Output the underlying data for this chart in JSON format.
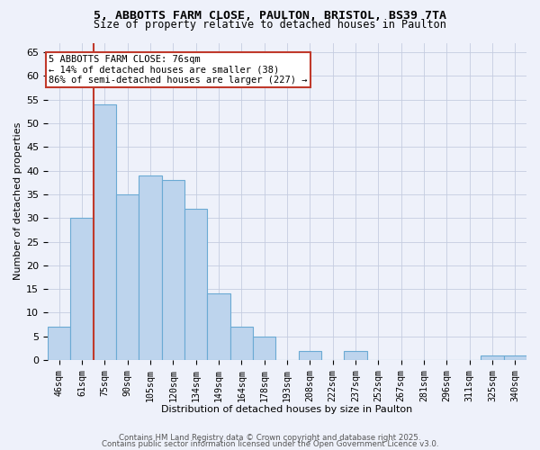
{
  "title_line1": "5, ABBOTTS FARM CLOSE, PAULTON, BRISTOL, BS39 7TA",
  "title_line2": "Size of property relative to detached houses in Paulton",
  "xlabel": "Distribution of detached houses by size in Paulton",
  "ylabel": "Number of detached properties",
  "bar_labels": [
    "46sqm",
    "61sqm",
    "75sqm",
    "90sqm",
    "105sqm",
    "120sqm",
    "134sqm",
    "149sqm",
    "164sqm",
    "178sqm",
    "193sqm",
    "208sqm",
    "222sqm",
    "237sqm",
    "252sqm",
    "267sqm",
    "281sqm",
    "296sqm",
    "311sqm",
    "325sqm",
    "340sqm"
  ],
  "bar_values": [
    7,
    30,
    54,
    35,
    39,
    38,
    32,
    14,
    7,
    5,
    0,
    2,
    0,
    2,
    0,
    0,
    0,
    0,
    0,
    1,
    1
  ],
  "bar_color": "#bdd4ed",
  "bar_edge_color": "#6baad4",
  "vline_x": 2.0,
  "vline_color": "#c0392b",
  "annotation_text": "5 ABBOTTS FARM CLOSE: 76sqm\n← 14% of detached houses are smaller (38)\n86% of semi-detached houses are larger (227) →",
  "annotation_box_color": "white",
  "annotation_box_edge": "#c0392b",
  "ylim": [
    0,
    67
  ],
  "yticks": [
    0,
    5,
    10,
    15,
    20,
    25,
    30,
    35,
    40,
    45,
    50,
    55,
    60,
    65
  ],
  "footer_line1": "Contains HM Land Registry data © Crown copyright and database right 2025.",
  "footer_line2": "Contains public sector information licensed under the Open Government Licence v3.0.",
  "bg_color": "#eef1fa",
  "plot_bg_color": "#eef1fa",
  "grid_color": "#c5cce0"
}
